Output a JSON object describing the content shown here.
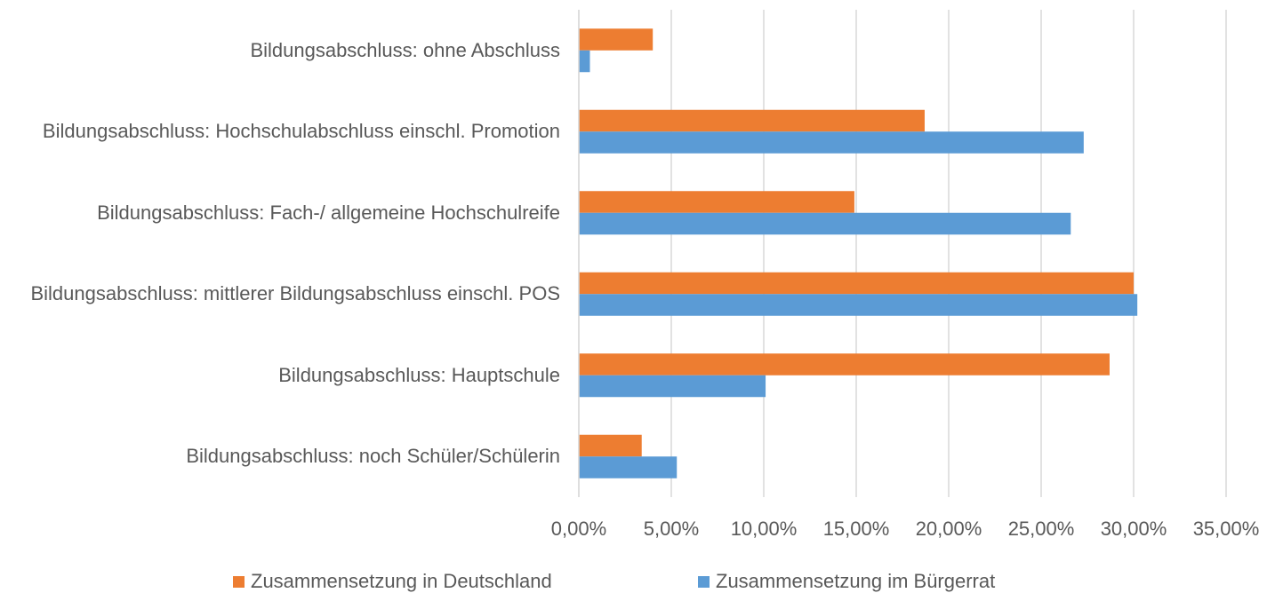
{
  "chart_data": {
    "type": "bar",
    "orientation": "horizontal",
    "categories": [
      "Bildungsabschluss: ohne Abschluss",
      "Bildungsabschluss: Hochschulabschluss einschl. Promotion",
      "Bildungsabschluss: Fach-/ allgemeine Hochschulreife",
      "Bildungsabschluss: mittlerer Bildungsabschluss einschl. POS",
      "Bildungsabschluss: Hauptschule",
      "Bildungsabschluss: noch Schüler/Schülerin"
    ],
    "series": [
      {
        "name": "Zusammensetzung in Deutschland",
        "color": "#ed7d31",
        "values": [
          4.0,
          18.7,
          14.9,
          30.0,
          28.7,
          3.4
        ]
      },
      {
        "name": "Zusammensetzung im Bürgerrat",
        "color": "#5b9bd5",
        "values": [
          0.6,
          27.3,
          26.6,
          30.2,
          10.1,
          5.3
        ]
      }
    ],
    "xlim": [
      0,
      35
    ],
    "xticks": [
      {
        "value": 0,
        "label": "0,00%"
      },
      {
        "value": 5,
        "label": "5,00%"
      },
      {
        "value": 10,
        "label": "10,00%"
      },
      {
        "value": 15,
        "label": "15,00%"
      },
      {
        "value": 20,
        "label": "20,00%"
      },
      {
        "value": 25,
        "label": "25,00%"
      },
      {
        "value": 30,
        "label": "30,00%"
      },
      {
        "value": 35,
        "label": "35,00%"
      }
    ],
    "grid": true,
    "legend": "bottom"
  }
}
